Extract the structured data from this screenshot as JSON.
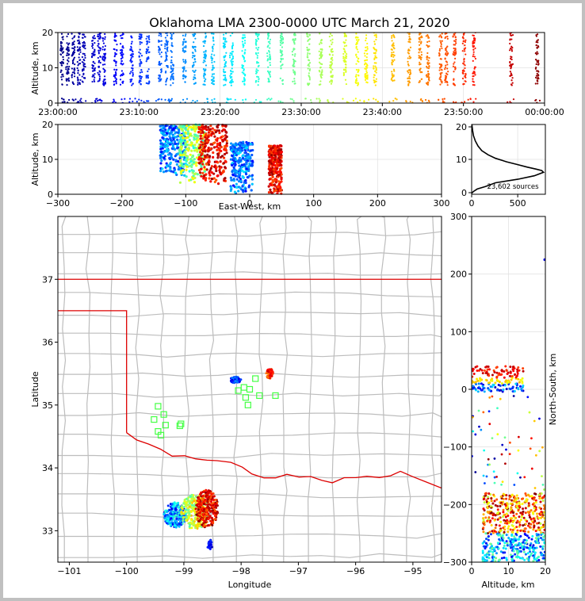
{
  "title": "Oklahoma LMA 2300-0000 UTC March 21, 2020",
  "chart_data": [
    {
      "type": "scatter",
      "panel": "altitude-time",
      "xlabel": "",
      "ylabel": "Altitude, km",
      "xlim": [
        "23:00:00",
        "00:00:00"
      ],
      "ylim": [
        0,
        20
      ],
      "xticks": [
        "23:00:00",
        "23:10:00",
        "23:20:00",
        "23:30:00",
        "23:40:00",
        "23:50:00",
        "00:00:00"
      ],
      "yticks": [
        "0",
        "10",
        "20"
      ],
      "color_by": "time",
      "colormap": "jet",
      "columns_minutes": [
        0.5,
        1.2,
        1.9,
        2.6,
        3.2,
        4.4,
        5.1,
        5.7,
        7.1,
        7.9,
        9.1,
        10.2,
        11.1,
        12.6,
        13.4,
        14.1,
        15.6,
        16.8,
        18.1,
        19.1,
        20.6,
        21.4,
        22.9,
        24.6,
        26.0,
        27.6,
        29.1,
        30.9,
        32.4,
        33.7,
        35.4,
        36.9,
        38.0,
        39.1,
        41.3,
        43.3,
        44.7,
        45.6,
        47.2,
        47.9,
        48.9,
        50.1,
        51.3,
        55.9,
        59.1
      ]
    },
    {
      "type": "scatter",
      "panel": "east-west-altitude",
      "xlabel": "East-West, km",
      "ylabel": "Altitude, km",
      "xlim": [
        -300,
        300
      ],
      "ylim": [
        0,
        20
      ],
      "xticks": [
        "−300",
        "−200",
        "−100",
        "0",
        "100",
        "200",
        "300"
      ],
      "yticks": [
        "0",
        "10",
        "20"
      ],
      "clusters": [
        {
          "x": [
            -140,
            -100
          ],
          "y": [
            5,
            20
          ],
          "color_time": "early"
        },
        {
          "x": [
            -110,
            -70
          ],
          "y": [
            3,
            20
          ],
          "color_time": "middle"
        },
        {
          "x": [
            -80,
            -35
          ],
          "y": [
            3,
            20
          ],
          "color_time": "late"
        },
        {
          "x": [
            -30,
            5
          ],
          "y": [
            0,
            15
          ],
          "color_time": "early"
        },
        {
          "x": [
            30,
            50
          ],
          "y": [
            0,
            14
          ],
          "color_time": "late"
        }
      ]
    },
    {
      "type": "line",
      "panel": "altitude-histogram",
      "xlabel": "",
      "ylabel": "",
      "xlim": [
        0,
        800
      ],
      "ylim": [
        0,
        20
      ],
      "xticks": [
        "0",
        "500"
      ],
      "yticks": [
        "0",
        "10",
        "20"
      ],
      "annotation": "23,602 sources",
      "profile": [
        [
          0,
          0.3
        ],
        [
          20,
          0.8
        ],
        [
          60,
          1.5
        ],
        [
          150,
          2.2
        ],
        [
          260,
          3.3
        ],
        [
          500,
          4.3
        ],
        [
          680,
          5.3
        ],
        [
          780,
          6.3
        ],
        [
          760,
          6.8
        ],
        [
          700,
          7.2
        ],
        [
          600,
          7.8
        ],
        [
          500,
          8.5
        ],
        [
          380,
          9.3
        ],
        [
          260,
          10.3
        ],
        [
          180,
          11.3
        ],
        [
          110,
          12.5
        ],
        [
          70,
          13.8
        ],
        [
          40,
          15.3
        ],
        [
          20,
          16.8
        ],
        [
          10,
          18.3
        ],
        [
          3,
          20
        ]
      ]
    },
    {
      "type": "scatter",
      "panel": "plan-view",
      "xlabel": "Longitude",
      "ylabel": "Latitude",
      "xlim": [
        -101.2,
        -94.5
      ],
      "ylim": [
        32.5,
        38.0
      ],
      "xticks": [
        "−101",
        "−100",
        "−99",
        "−98",
        "−97",
        "−96",
        "−95"
      ],
      "yticks": [
        "33",
        "34",
        "35",
        "36",
        "37"
      ],
      "stations": [
        [
          -99.45,
          34.98
        ],
        [
          -99.35,
          34.85
        ],
        [
          -99.52,
          34.77
        ],
        [
          -99.32,
          34.68
        ],
        [
          -99.45,
          34.58
        ],
        [
          -99.4,
          34.52
        ],
        [
          -99.05,
          34.7
        ],
        [
          -99.07,
          34.67
        ],
        [
          -98.05,
          35.23
        ],
        [
          -97.95,
          35.28
        ],
        [
          -97.85,
          35.25
        ],
        [
          -97.75,
          35.42
        ],
        [
          -97.68,
          35.15
        ],
        [
          -97.92,
          35.12
        ],
        [
          -97.4,
          35.15
        ],
        [
          -97.88,
          35.0
        ]
      ]
    },
    {
      "type": "scatter",
      "panel": "altitude-north-south",
      "xlabel": "Altitude, km",
      "ylabel": "North-South, km",
      "xlim": [
        0,
        20
      ],
      "ylim": [
        -300,
        300
      ],
      "xticks": [
        "0",
        "10",
        "20"
      ],
      "yticks": [
        "−300",
        "−200",
        "−100",
        "0",
        "100",
        "200",
        "300"
      ]
    }
  ],
  "colors": {
    "border": "#dd0000",
    "counties": "#bdbdbd",
    "stations": "#44ff44",
    "grid": "#e2e2e2"
  }
}
